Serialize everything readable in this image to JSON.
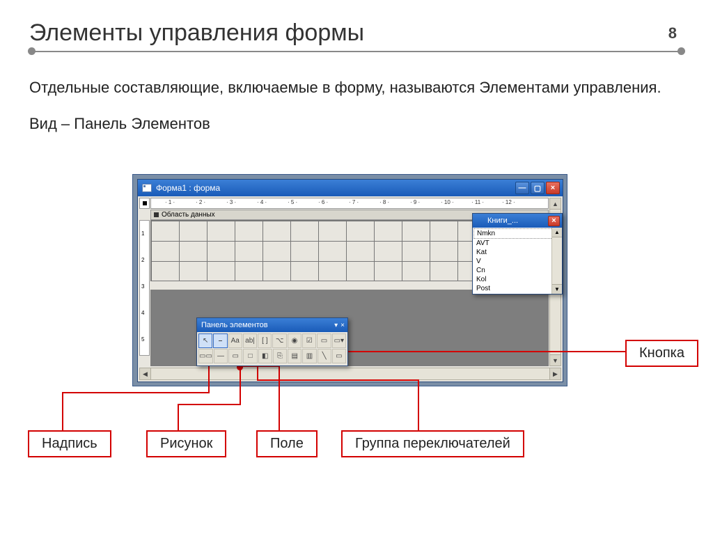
{
  "slide": {
    "title": "Элементы управления формы",
    "page": "8",
    "paragraph": "Отдельные составляющие, включаемые в форму, называются Элементами управления.",
    "menu_path": "Вид – Панель Элементов"
  },
  "main_window": {
    "title": "Форма1 : форма",
    "section_header": "Область данных",
    "ruler_ticks": [
      "1",
      "2",
      "3",
      "4",
      "5",
      "6",
      "7",
      "8",
      "9",
      "10",
      "11",
      "12"
    ],
    "vruler_ticks": [
      "1",
      "2",
      "3",
      "4",
      "5"
    ]
  },
  "toolbox": {
    "title": "Панель элементов",
    "dropdown_glyph": "▾",
    "close_glyph": "×",
    "row1": [
      "↖",
      "⎯",
      "Aa",
      "ab|",
      "[ ]",
      "⌥",
      "◉",
      "☑",
      "▭",
      "▭▾"
    ],
    "row2": [
      "▭▭",
      "—",
      "▭",
      "□",
      "◧",
      "⎘",
      "▤",
      "▥",
      "╲",
      "▭"
    ]
  },
  "fieldlist": {
    "title": "Книги_...",
    "close_glyph": "×",
    "items": [
      "Nmkn",
      "AVT",
      "Kat",
      "V",
      "Cn",
      "Kol",
      "Post"
    ]
  },
  "callouts": {
    "button": "Кнопка",
    "label": "Надпись",
    "picture": "Рисунок",
    "field": "Поле",
    "optiongroup": "Группа переключателей"
  },
  "colors": {
    "red": "#d30000",
    "titlebar_top": "#3b7fd6",
    "titlebar_bottom": "#1a5bb8",
    "bg_outer": "#7a8ea6",
    "grid_line": "#777777"
  }
}
